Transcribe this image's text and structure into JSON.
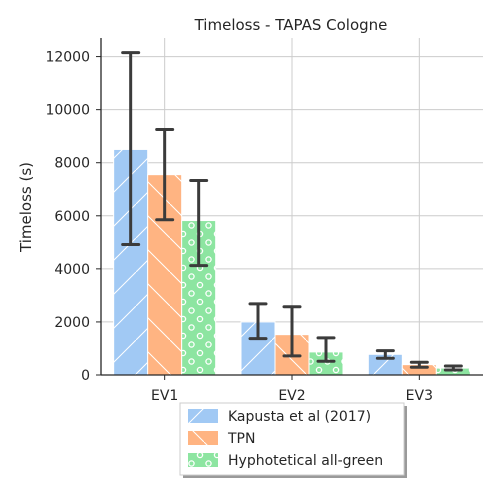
{
  "chart_data": {
    "type": "bar",
    "title": "Timeloss  - TAPAS Cologne",
    "xlabel": "",
    "ylabel": "Timeloss (s)",
    "ylim": [
      0,
      12700
    ],
    "yticks": [
      0,
      2000,
      4000,
      6000,
      8000,
      10000,
      12000
    ],
    "ytick_labels": [
      "0",
      "2000",
      "4000",
      "6000",
      "8000",
      "10000",
      "12000"
    ],
    "categories": [
      "EV1",
      "EV2",
      "EV3"
    ],
    "grid": true,
    "legend_position": "bottom-center",
    "series": [
      {
        "name": "Kapusta et al (2017)",
        "color": "#a1c9f4",
        "hatch": "slash",
        "values": [
          8500,
          2000,
          780
        ],
        "error_low": [
          4920,
          1370,
          630
        ],
        "error_high": [
          12150,
          2680,
          920
        ]
      },
      {
        "name": "TPN",
        "color": "#ffb482",
        "hatch": "backslash",
        "values": [
          7550,
          1520,
          390
        ],
        "error_low": [
          5850,
          720,
          290
        ],
        "error_high": [
          9250,
          2570,
          480
        ]
      },
      {
        "name": "Hyphotetical all-green",
        "color": "#8de5a1",
        "hatch": "circles",
        "values": [
          5820,
          870,
          260
        ],
        "error_low": [
          4120,
          520,
          190
        ],
        "error_high": [
          7330,
          1400,
          340
        ]
      }
    ]
  }
}
